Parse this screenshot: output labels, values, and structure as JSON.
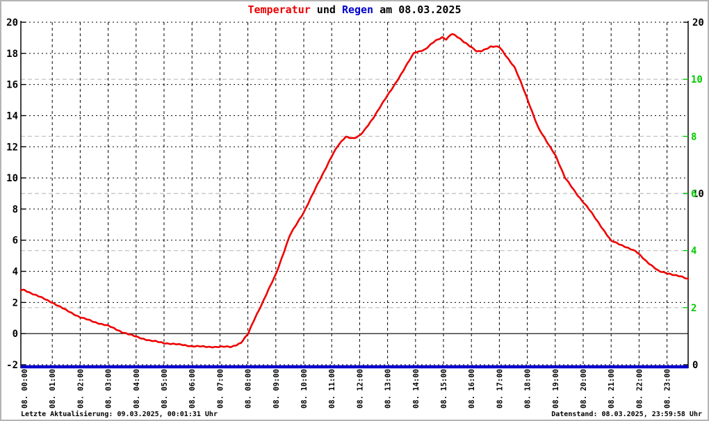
{
  "title": {
    "part1": "Temperatur",
    "part2": " und ",
    "part3": "Regen",
    "part4": " am 08.03.2025"
  },
  "footer": {
    "left": "Letzte Aktualisierung: 09.03.2025, 00:01:31 Uhr",
    "right": "Datenstand: 08.03.2025, 23:59:58 Uhr"
  },
  "colors": {
    "temperature_line": "#ee0000",
    "rain_line": "#0000cc",
    "right_axis_green": "#00cc00",
    "grid_black": "#000000",
    "grid_gray": "#c8c8c8",
    "frame_border": "#b4b4b4"
  },
  "chart_data": {
    "type": "line",
    "title": "Temperatur und Regen am 08.03.2025",
    "grid": true,
    "legend": "none",
    "x_axis": {
      "labels": [
        "08. 00:00",
        "08. 01:00",
        "08. 02:00",
        "08. 03:00",
        "08. 04:00",
        "08. 05:00",
        "08. 06:00",
        "08. 07:00",
        "08. 08:00",
        "08. 09:00",
        "08. 10:00",
        "08. 11:00",
        "08. 12:00",
        "08. 13:00",
        "08. 14:00",
        "08. 15:00",
        "08. 16:00",
        "08. 17:00",
        "08. 18:00",
        "08. 19:00",
        "08. 20:00",
        "08. 21:00",
        "08. 22:00",
        "08. 23:00"
      ],
      "hours": [
        0,
        1,
        2,
        3,
        4,
        5,
        6,
        7,
        8,
        9,
        10,
        11,
        12,
        13,
        14,
        15,
        16,
        17,
        18,
        19,
        20,
        21,
        22,
        23
      ],
      "range_hours": [
        0,
        23.75
      ]
    },
    "left_axis": {
      "min": -2,
      "max": 20,
      "tick_step": 2,
      "color": "#000000",
      "zero_line_solid": true
    },
    "right_axis_green": {
      "min": 0,
      "max": 12,
      "labeled_ticks": [
        2,
        4,
        6,
        8,
        10
      ],
      "color": "#00cc00"
    },
    "right_axis_black": {
      "min": 0,
      "max": 20,
      "labeled_ticks": [
        0,
        10,
        20
      ],
      "color": "#000000"
    },
    "series": [
      {
        "name": "Temperatur",
        "axis": "left",
        "color": "#ee0000",
        "x": [
          0,
          0.5,
          1,
          1.5,
          2,
          2.5,
          3,
          3.5,
          4,
          4.5,
          5,
          5.5,
          6,
          6.5,
          7,
          7.4,
          7.75,
          8,
          8.25,
          8.5,
          9,
          9.5,
          10,
          10.5,
          11,
          11.2,
          11.5,
          11.8,
          12,
          12.15,
          12.5,
          13,
          13.5,
          13.95,
          14.35,
          14.7,
          14.95,
          15.1,
          15.3,
          15.55,
          15.85,
          16.2,
          16.35,
          16.7,
          17,
          17.3,
          17.55,
          17.8,
          18.1,
          18.4,
          18.7,
          19,
          19.35,
          19.8,
          20.2,
          20.6,
          21,
          21.5,
          21.9,
          22.3,
          22.7,
          23.1,
          23.5,
          23.75
        ],
        "values": [
          2.8,
          2.4,
          2.0,
          1.5,
          1.05,
          0.75,
          0.5,
          0.1,
          -0.2,
          -0.45,
          -0.6,
          -0.7,
          -0.8,
          -0.85,
          -0.85,
          -0.85,
          -0.6,
          -0.05,
          1.0,
          1.9,
          3.8,
          6.3,
          7.8,
          9.6,
          11.4,
          12.0,
          12.65,
          12.55,
          12.7,
          13.0,
          13.9,
          15.3,
          16.7,
          18.05,
          18.25,
          18.8,
          19.05,
          18.9,
          19.25,
          19.0,
          18.6,
          18.1,
          18.15,
          18.45,
          18.4,
          17.7,
          17.1,
          16.0,
          14.6,
          13.2,
          12.3,
          11.5,
          10.0,
          8.9,
          8.0,
          7.0,
          5.95,
          5.6,
          5.25,
          4.6,
          4.0,
          3.85,
          3.65,
          3.5
        ]
      },
      {
        "name": "Regen",
        "axis": "right_green",
        "color": "#0000cc",
        "x": [
          0,
          23.75
        ],
        "values": [
          0,
          0
        ]
      }
    ]
  }
}
